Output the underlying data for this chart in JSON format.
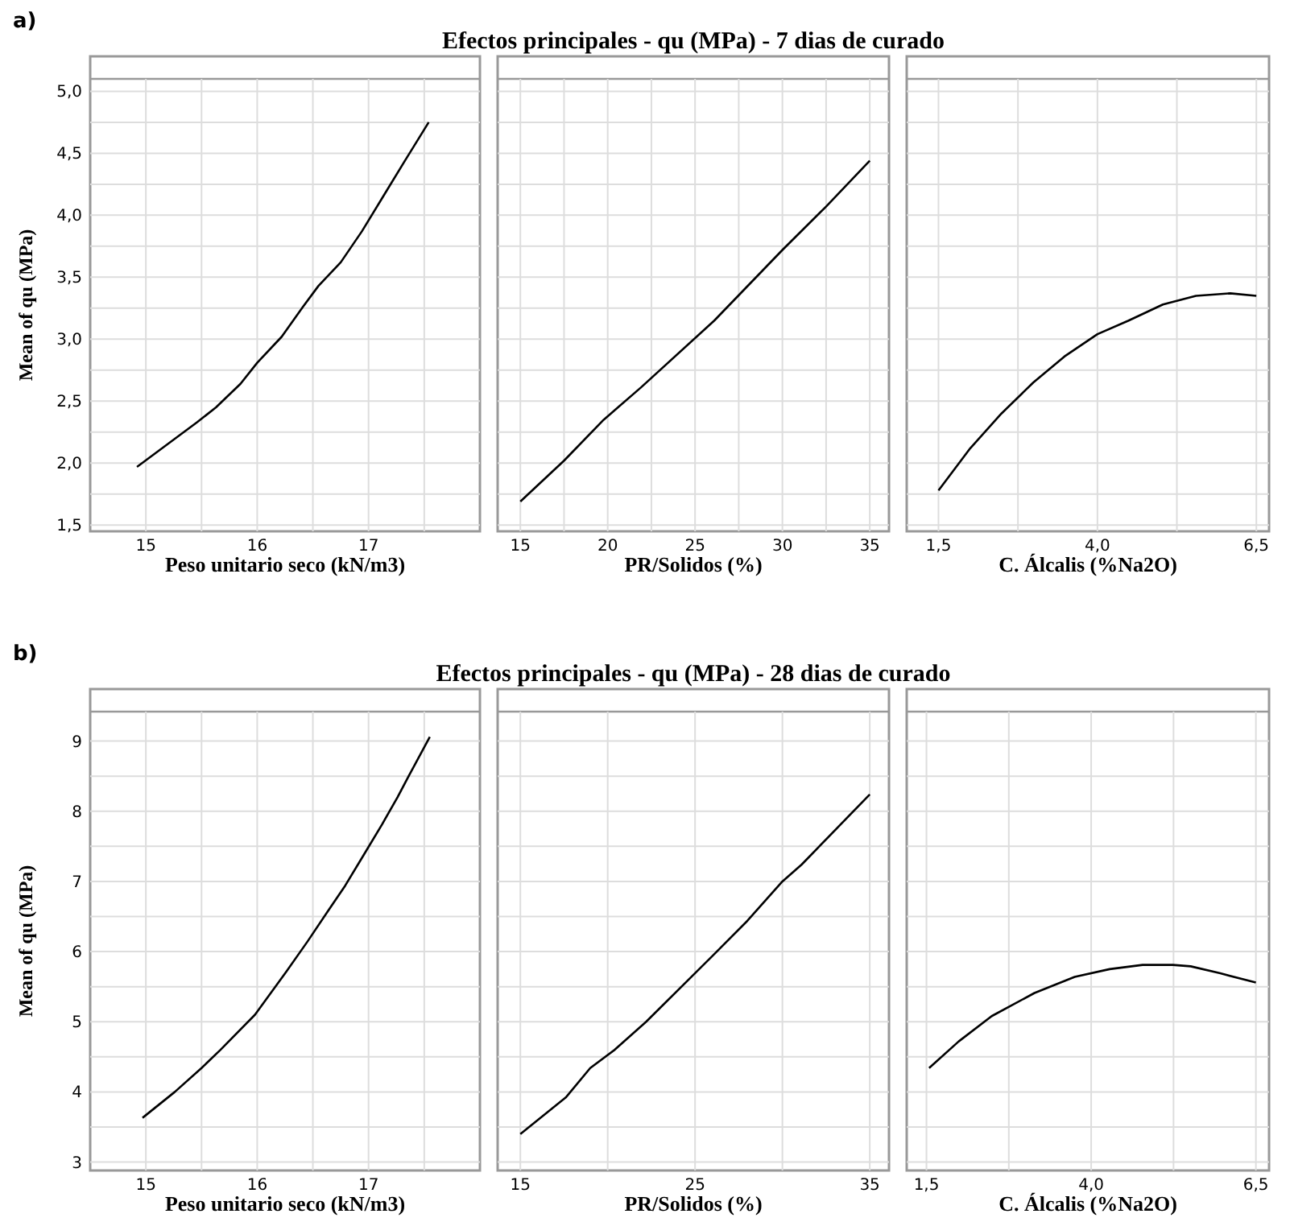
{
  "chart_data": [
    {
      "type": "line",
      "annotations": [
        "a)"
      ],
      "xlabel": "Peso unitario seco (kN/m3)",
      "ylabel": "Mean of qu (MPa)",
      "grid": true,
      "xlim": [
        14.5,
        18.0
      ],
      "xticks": [
        15,
        {
          "value": 15.5,
          "label": null
        },
        16,
        {
          "value": 16.5,
          "label": null
        },
        17,
        {
          "value": 17.5,
          "label": null
        }
      ],
      "ylim": [
        1.45,
        5.1
      ],
      "yticks": [
        {
          "value": 1.5,
          "label": "1,5"
        },
        {
          "value": 1.75,
          "label": null
        },
        {
          "value": 2,
          "label": "2,0"
        },
        {
          "value": 2.25,
          "label": null
        },
        {
          "value": 2.5,
          "label": "2,5"
        },
        {
          "value": 2.75,
          "label": null
        },
        {
          "value": 3,
          "label": "3,0"
        },
        {
          "value": 3.25,
          "label": null
        },
        {
          "value": 3.5,
          "label": "3,5"
        },
        {
          "value": 3.75,
          "label": null
        },
        {
          "value": 4,
          "label": "4,0"
        },
        {
          "value": 4.25,
          "label": null
        },
        {
          "value": 4.5,
          "label": "4,5"
        },
        {
          "value": 4.75,
          "label": null
        },
        {
          "value": 5,
          "label": "5,0"
        }
      ],
      "series": [
        {
          "color": "#000000",
          "x": [
            14.92,
            15.1,
            15.46,
            15.63,
            15.85,
            16.0,
            16.22,
            16.41,
            16.55,
            16.75,
            16.94,
            17.13,
            17.32,
            17.54
          ],
          "values": [
            1.97,
            2.09,
            2.33,
            2.45,
            2.64,
            2.81,
            3.02,
            3.26,
            3.43,
            3.62,
            3.87,
            4.15,
            4.43,
            4.75
          ]
        }
      ]
    },
    {
      "type": "line",
      "title": "Efectos principales - qu (MPa) - 7 dias de curado",
      "xlabel": "PR/Solidos (%)",
      "grid": true,
      "tick_labels": "x",
      "xlim": [
        13.7,
        36.1
      ],
      "xticks": [
        15,
        {
          "value": 17.5,
          "label": null
        },
        20,
        {
          "value": 22.5,
          "label": null
        },
        25,
        {
          "value": 27.5,
          "label": null
        },
        30,
        {
          "value": 32.5,
          "label": null
        },
        35
      ],
      "ylim": [
        1.45,
        5.1
      ],
      "yticks": [
        1.5,
        1.75,
        2,
        2.25,
        2.5,
        2.75,
        3,
        3.25,
        3.5,
        3.75,
        4,
        4.25,
        4.5,
        4.75,
        5
      ],
      "series": [
        {
          "color": "#000000",
          "x": [
            15,
            17.5,
            19.77,
            21.9,
            26.1,
            30,
            32.5,
            35
          ],
          "values": [
            1.69,
            2.02,
            2.35,
            2.61,
            3.15,
            3.72,
            4.07,
            4.44
          ]
        }
      ]
    },
    {
      "type": "line",
      "xlabel": "C. Álcalis (%Na2O)",
      "grid": true,
      "tick_labels": "x",
      "xlim": [
        1.0,
        6.7
      ],
      "xticks": [
        {
          "value": 1.5,
          "label": "1,5"
        },
        {
          "value": 2.75,
          "label": null
        },
        {
          "value": 4,
          "label": "4,0"
        },
        {
          "value": 5.25,
          "label": null
        },
        {
          "value": 6.5,
          "label": "6,5"
        }
      ],
      "ylim": [
        1.45,
        5.1
      ],
      "yticks": [
        1.5,
        1.75,
        2,
        2.25,
        2.5,
        2.75,
        3,
        3.25,
        3.5,
        3.75,
        4,
        4.25,
        4.5,
        4.75,
        5
      ],
      "series": [
        {
          "color": "#000000",
          "x": [
            1.5,
            2.0,
            2.49,
            2.99,
            3.48,
            4.0,
            4.49,
            5.03,
            5.55,
            6.09,
            6.5
          ],
          "values": [
            1.78,
            2.12,
            2.4,
            2.65,
            2.86,
            3.04,
            3.15,
            3.28,
            3.35,
            3.37,
            3.35
          ]
        }
      ]
    },
    {
      "type": "line",
      "annotations": [
        "b)"
      ],
      "xlabel": "Peso unitario seco (kN/m3)",
      "ylabel": "Mean of qu (MPa)",
      "grid": true,
      "xlim": [
        14.5,
        18.0
      ],
      "xticks": [
        15,
        {
          "value": 15.5,
          "label": null
        },
        16,
        {
          "value": 16.5,
          "label": null
        },
        17,
        {
          "value": 17.5,
          "label": null
        }
      ],
      "ylim": [
        2.88,
        9.42
      ],
      "yticks": [
        3,
        {
          "value": 3.5,
          "label": null
        },
        4,
        {
          "value": 4.5,
          "label": null
        },
        5,
        {
          "value": 5.5,
          "label": null
        },
        6,
        {
          "value": 6.5,
          "label": null
        },
        7,
        {
          "value": 7.5,
          "label": null
        },
        8,
        {
          "value": 8.5,
          "label": null
        },
        9
      ],
      "series": [
        {
          "color": "#000000",
          "x": [
            14.97,
            15.26,
            15.5,
            15.67,
            15.98,
            16.26,
            16.45,
            16.64,
            16.79,
            16.95,
            17.12,
            17.26,
            17.36,
            17.55
          ],
          "values": [
            3.63,
            4.0,
            4.34,
            4.6,
            5.1,
            5.71,
            6.14,
            6.59,
            6.94,
            7.36,
            7.81,
            8.2,
            8.5,
            9.06
          ]
        }
      ]
    },
    {
      "type": "line",
      "title": "Efectos principales - qu (MPa) - 28 dias de curado",
      "xlabel": "PR/Solidos (%)",
      "grid": true,
      "tick_labels": "x",
      "xlim": [
        13.7,
        36.1
      ],
      "xticks": [
        15,
        {
          "value": 20,
          "label": null
        },
        25,
        {
          "value": 30,
          "label": null
        },
        35
      ],
      "ylim": [
        2.88,
        9.42
      ],
      "yticks": [
        3,
        3.5,
        4,
        4.5,
        5,
        5.5,
        6,
        6.5,
        7,
        7.5,
        8,
        8.5,
        9
      ],
      "series": [
        {
          "color": "#000000",
          "x": [
            15,
            17.6,
            19.0,
            20.4,
            22.2,
            26.0,
            28.0,
            30.0,
            31.1,
            35.0
          ],
          "values": [
            3.4,
            3.92,
            4.34,
            4.6,
            5.0,
            5.94,
            6.44,
            7.0,
            7.24,
            8.24
          ]
        }
      ]
    },
    {
      "type": "line",
      "xlabel": "C. Álcalis (%Na2O)",
      "grid": true,
      "tick_labels": "x",
      "xlim": [
        1.2,
        6.7
      ],
      "xticks": [
        {
          "value": 1.5,
          "label": "1,5"
        },
        {
          "value": 2.75,
          "label": null
        },
        {
          "value": 4,
          "label": "4,0"
        },
        {
          "value": 5.25,
          "label": null
        },
        {
          "value": 6.5,
          "label": "6,5"
        }
      ],
      "ylim": [
        2.88,
        9.42
      ],
      "yticks": [
        3,
        3.5,
        4,
        4.5,
        5,
        5.5,
        6,
        6.5,
        7,
        7.5,
        8,
        8.5,
        9
      ],
      "series": [
        {
          "color": "#000000",
          "x": [
            1.54,
            1.99,
            2.49,
            3.14,
            3.75,
            4.28,
            4.78,
            5.24,
            5.51,
            5.96,
            6.5
          ],
          "values": [
            4.34,
            4.72,
            5.08,
            5.41,
            5.64,
            5.75,
            5.81,
            5.81,
            5.79,
            5.69,
            5.56
          ]
        }
      ]
    }
  ]
}
